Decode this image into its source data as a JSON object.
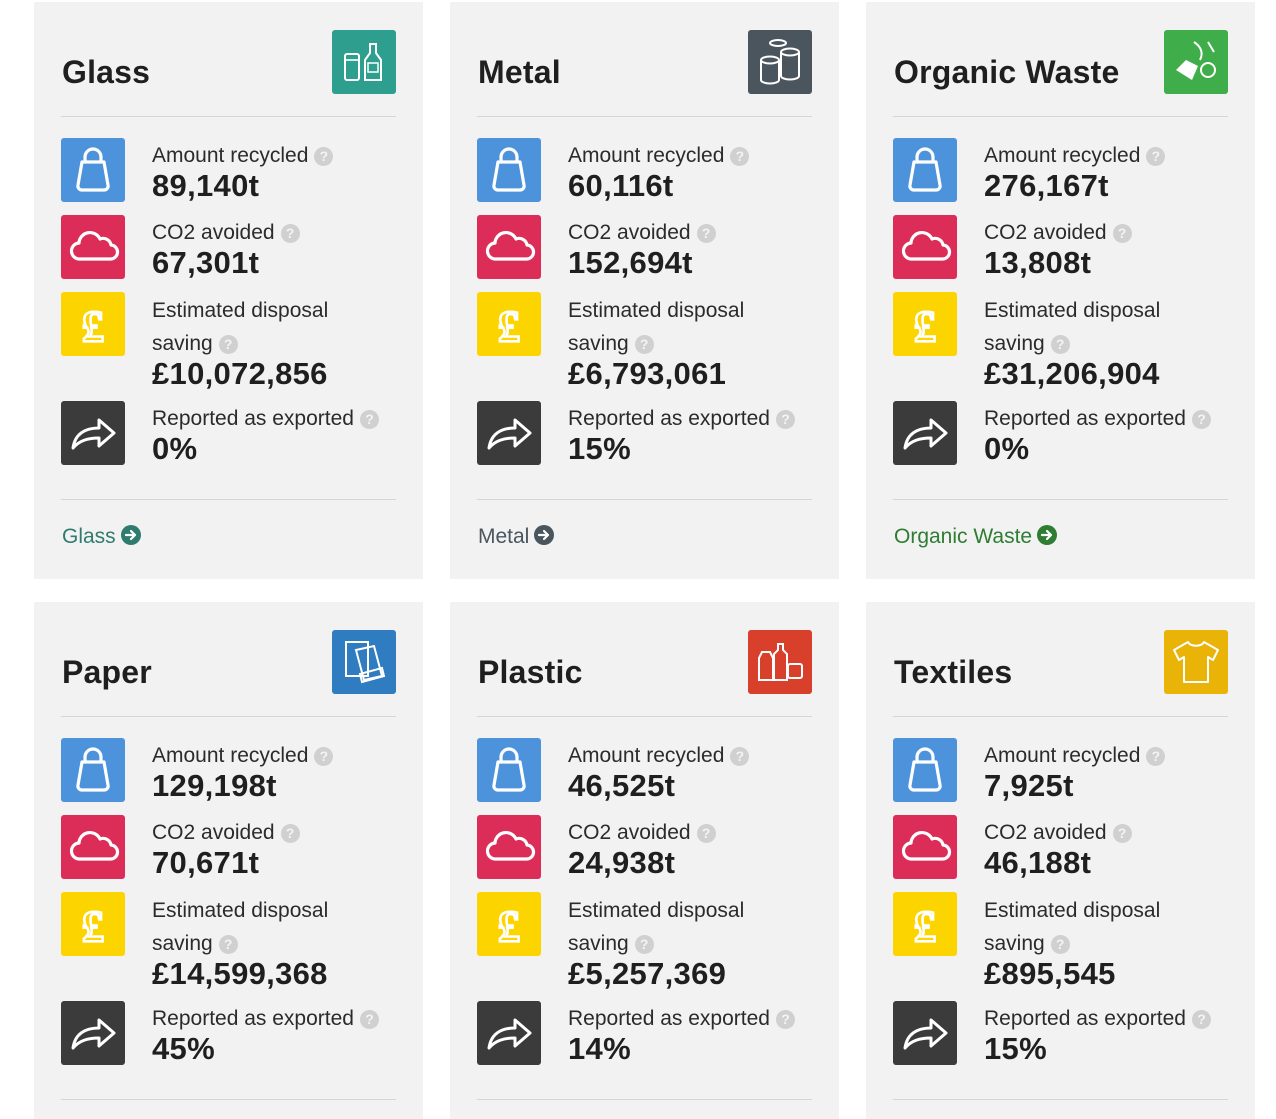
{
  "labels": {
    "amount": "Amount recycled",
    "co2": "CO2 avoided",
    "saving_line1": "Estimated disposal",
    "saving_line2": "saving",
    "exported": "Reported as exported",
    "help_glyph": "?"
  },
  "cards": [
    {
      "title": "Glass",
      "icon": "glass-bottles-icon",
      "accent": "#2e9f8f",
      "amount": "89,140t",
      "co2": "67,301t",
      "saving": "£10,072,856",
      "exported": "0%",
      "link": "Glass",
      "link_color": "#2f7c6e"
    },
    {
      "title": "Metal",
      "icon": "cans-icon",
      "accent": "#4a555e",
      "amount": "60,116t",
      "co2": "152,694t",
      "saving": "£6,793,061",
      "exported": "15%",
      "link": "Metal",
      "link_color": "#4a555e"
    },
    {
      "title": "Organic Waste",
      "icon": "food-waste-icon",
      "accent": "#3fae4a",
      "amount": "276,167t",
      "co2": "13,808t",
      "saving": "£31,206,904",
      "exported": "0%",
      "link": "Organic Waste",
      "link_color": "#2e7d32"
    },
    {
      "title": "Paper",
      "icon": "paper-carton-icon",
      "accent": "#2f7cc1",
      "amount": "129,198t",
      "co2": "70,671t",
      "saving": "£14,599,368",
      "exported": "45%"
    },
    {
      "title": "Plastic",
      "icon": "plastic-containers-icon",
      "accent": "#d9402b",
      "amount": "46,525t",
      "co2": "24,938t",
      "saving": "£5,257,369",
      "exported": "14%"
    },
    {
      "title": "Textiles",
      "icon": "t-shirt-icon",
      "accent": "#eab308",
      "amount": "7,925t",
      "co2": "46,188t",
      "saving": "£895,545",
      "exported": "15%"
    }
  ],
  "tile_colors": {
    "amount": "#4c93dc",
    "co2": "#dc2c58",
    "saving": "#fcd400",
    "exported": "#3b3b3b"
  }
}
